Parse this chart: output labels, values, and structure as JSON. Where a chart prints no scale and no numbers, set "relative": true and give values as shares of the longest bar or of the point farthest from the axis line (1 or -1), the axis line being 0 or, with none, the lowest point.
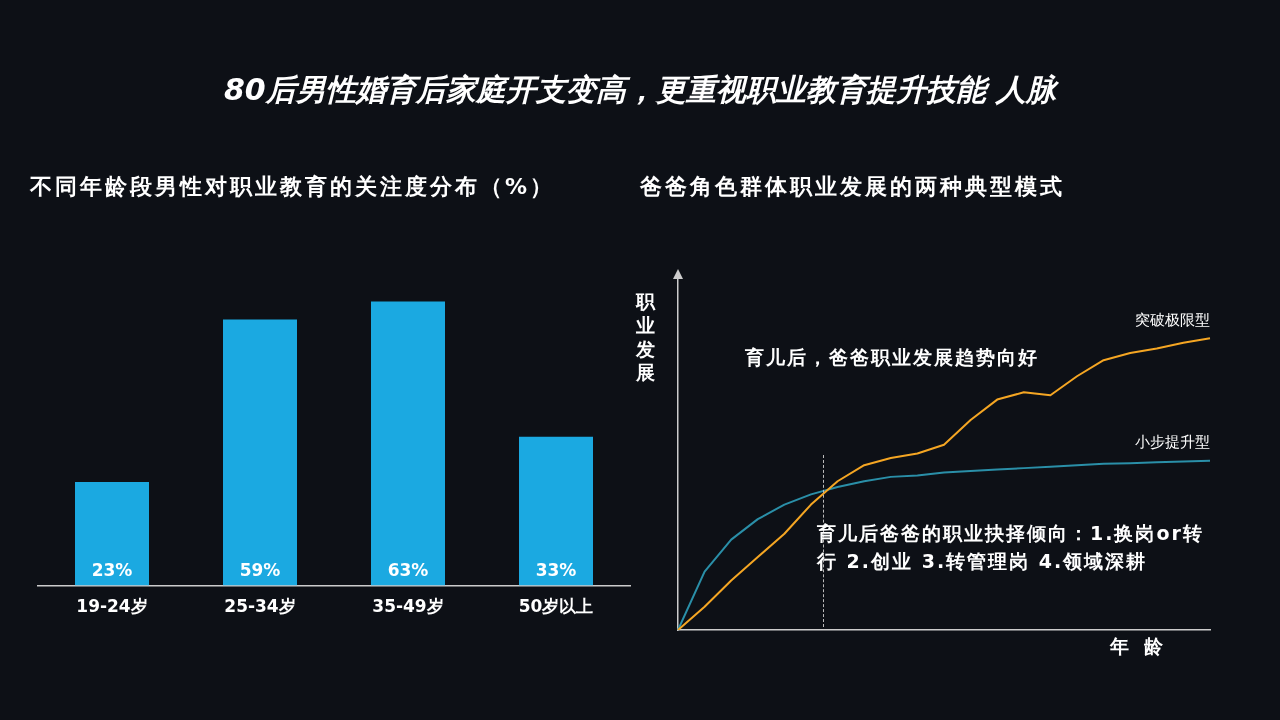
{
  "chart_data": [
    {
      "type": "bar",
      "title": "80后男性婚育后家庭开支变高，更重视职业教育提升技能 人脉",
      "subtitle": "不同年龄段男性对职业教育的关注度分布（%）",
      "categories": [
        "19-24岁",
        "25-34岁",
        "35-49岁",
        "50岁以上"
      ],
      "values": [
        23,
        59,
        63,
        33
      ],
      "color": "#1ba9e1",
      "value_labels": [
        "23%",
        "59%",
        "63%",
        "33%"
      ],
      "tick_labels": "x",
      "grid": false,
      "legend": false
    },
    {
      "type": "line",
      "title": "爸爸角色群体职业发展的两种典型模式",
      "xlabel": "年 龄",
      "ylabel": "职业发展",
      "relative": true,
      "categories": [
        null,
        null,
        null,
        null,
        null,
        null,
        null,
        null,
        null,
        null,
        null,
        null,
        null,
        null,
        null,
        null,
        null,
        null,
        null,
        null,
        null
      ],
      "tick_labels": false,
      "grid": false,
      "legend": false,
      "marker": "none",
      "line_style": "solid",
      "series": [
        {
          "name": "突破极限型",
          "color": "#f5a623",
          "values": [
            0,
            0.08,
            0.17,
            0.25,
            0.33,
            0.43,
            0.51,
            0.565,
            0.59,
            0.605,
            0.635,
            0.72,
            0.79,
            0.815,
            0.805,
            0.87,
            0.925,
            0.95,
            0.965,
            0.985,
            1
          ]
        },
        {
          "name": "小步提升型",
          "color": "#2a8fa8",
          "values": [
            0,
            0.2,
            0.31,
            0.38,
            0.43,
            0.465,
            0.49,
            0.51,
            0.525,
            0.53,
            0.54,
            0.545,
            0.55,
            0.555,
            0.56,
            0.565,
            0.57,
            0.572,
            0.575,
            0.578,
            0.58
          ]
        }
      ],
      "annotations": [
        "育儿后，爸爸职业发展趋势向好",
        "育儿后爸爸的职业抉择倾向：1.换岗or转行 2.创业 3.转管理岗 4.领域深耕"
      ]
    }
  ]
}
